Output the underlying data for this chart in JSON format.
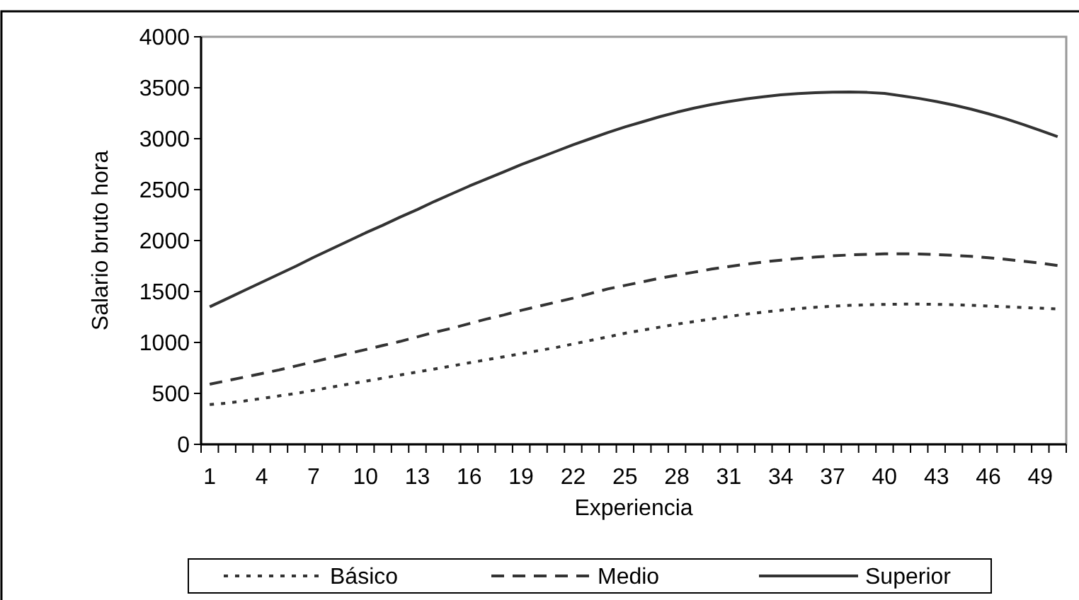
{
  "chart_data": {
    "type": "line",
    "xlabel": "Experiencia",
    "ylabel": "Salario bruto hora",
    "categories": [
      "1",
      null,
      null,
      "4",
      null,
      null,
      "7",
      null,
      null,
      "10",
      null,
      null,
      "13",
      null,
      null,
      "16",
      null,
      null,
      "19",
      null,
      null,
      "22",
      null,
      null,
      "25",
      null,
      null,
      "28",
      null,
      null,
      "31",
      null,
      null,
      "34",
      null,
      null,
      "37",
      null,
      null,
      "40",
      null,
      null,
      "43",
      null,
      null,
      "46",
      null,
      null,
      "49",
      null
    ],
    "ylim": [
      0,
      4000
    ],
    "yticks": [
      0,
      500,
      1000,
      1500,
      2000,
      2500,
      3000,
      3500,
      4000
    ],
    "grid": false,
    "legend": "bottom",
    "marker": "none",
    "series": [
      {
        "name": "Básico",
        "color": "#333333",
        "line_style": "dotted",
        "values": [
          390,
          405,
          425,
          450,
          475,
          500,
          530,
          560,
          590,
          620,
          650,
          680,
          710,
          740,
          770,
          800,
          830,
          860,
          890,
          920,
          950,
          985,
          1020,
          1055,
          1090,
          1120,
          1150,
          1180,
          1205,
          1230,
          1255,
          1278,
          1298,
          1316,
          1332,
          1345,
          1356,
          1364,
          1370,
          1374,
          1376,
          1376,
          1374,
          1370,
          1365,
          1358,
          1350,
          1343,
          1336,
          1329
        ]
      },
      {
        "name": "Medio",
        "color": "#333333",
        "line_style": "dashed",
        "values": [
          590,
          625,
          660,
          695,
          730,
          770,
          810,
          850,
          890,
          930,
          970,
          1010,
          1055,
          1100,
          1140,
          1185,
          1230,
          1270,
          1315,
          1355,
          1395,
          1435,
          1480,
          1525,
          1560,
          1595,
          1630,
          1660,
          1690,
          1720,
          1745,
          1768,
          1790,
          1808,
          1824,
          1838,
          1850,
          1859,
          1865,
          1869,
          1870,
          1868,
          1863,
          1855,
          1845,
          1832,
          1816,
          1798,
          1778,
          1755
        ]
      },
      {
        "name": "Superior",
        "color": "#333333",
        "line_style": "solid",
        "values": [
          1350,
          1430,
          1510,
          1590,
          1670,
          1750,
          1835,
          1915,
          1995,
          2075,
          2150,
          2230,
          2305,
          2385,
          2460,
          2535,
          2605,
          2675,
          2745,
          2810,
          2875,
          2940,
          3000,
          3060,
          3115,
          3165,
          3215,
          3260,
          3300,
          3335,
          3365,
          3390,
          3412,
          3430,
          3443,
          3452,
          3457,
          3458,
          3454,
          3445,
          3420,
          3395,
          3365,
          3330,
          3290,
          3245,
          3195,
          3140,
          3080,
          3020
        ]
      }
    ]
  }
}
